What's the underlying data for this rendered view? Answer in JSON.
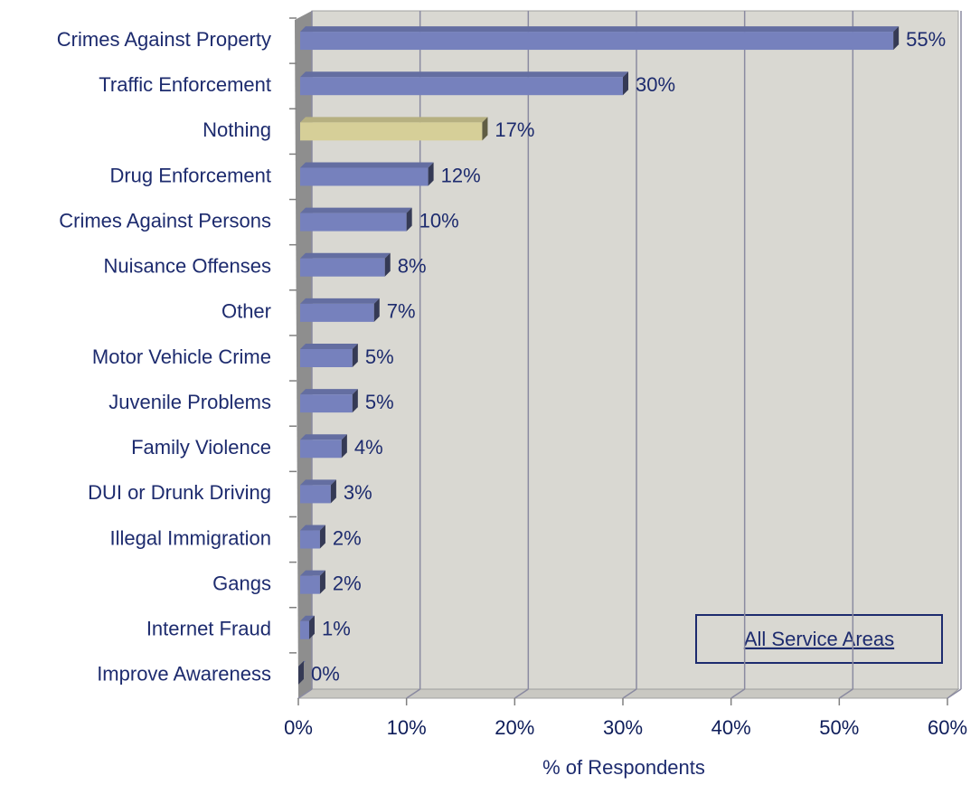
{
  "chart_data": {
    "type": "bar",
    "orientation": "horizontal",
    "categories": [
      "Crimes Against Property",
      "Traffic Enforcement",
      "Nothing",
      "Drug Enforcement",
      "Crimes Against Persons",
      "Nuisance Offenses",
      "Other",
      "Motor Vehicle Crime",
      "Juvenile Problems",
      "Family Violence",
      "DUI or Drunk Driving",
      "Illegal Immigration",
      "Gangs",
      "Internet Fraud",
      "Improve Awareness"
    ],
    "values": [
      55,
      30,
      17,
      12,
      10,
      8,
      7,
      5,
      5,
      4,
      3,
      2,
      2,
      1,
      0
    ],
    "value_labels": [
      "55%",
      "30%",
      "17%",
      "12%",
      "10%",
      "8%",
      "7%",
      "5%",
      "5%",
      "4%",
      "3%",
      "2%",
      "2%",
      "1%",
      "0%"
    ],
    "colors": [
      "#7681bd",
      "#7681bd",
      "#d6cf98",
      "#7681bd",
      "#7681bd",
      "#7681bd",
      "#7681bd",
      "#7681bd",
      "#7681bd",
      "#7681bd",
      "#7681bd",
      "#7681bd",
      "#7681bd",
      "#7681bd",
      "#7681bd"
    ],
    "xlim": [
      0,
      60
    ],
    "xticks": [
      {
        "value": 0,
        "label": "0%"
      },
      {
        "value": 10,
        "label": "10%"
      },
      {
        "value": 20,
        "label": "20%"
      },
      {
        "value": 30,
        "label": "30%"
      },
      {
        "value": 40,
        "label": "40%"
      },
      {
        "value": 50,
        "label": "50%"
      },
      {
        "value": 60,
        "label": "60%"
      }
    ],
    "xlabel": "% of Respondents",
    "annotation": "All Service Areas",
    "grid": true
  }
}
